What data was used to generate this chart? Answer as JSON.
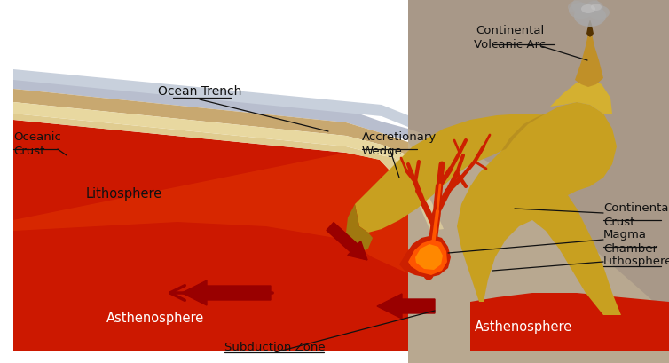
{
  "background_color": "#ffffff",
  "colors": {
    "ocean_water": "#b8bece",
    "ocean_water_light": "#c8d0dc",
    "oceanic_crust_brown": "#c8a870",
    "oceanic_crust_cream": "#e8d8a0",
    "lithosphere_cream": "#e0cc90",
    "asthenosphere_red": "#cc1800",
    "asthenosphere_orange": "#e84000",
    "continental_gray": "#a89888",
    "continental_tan": "#c8b898",
    "mountain_gold": "#c8a020",
    "mountain_gold2": "#b89018",
    "mountain_shadow": "#a07810",
    "magma_red": "#cc2000",
    "magma_orange": "#ff5500",
    "magma_bright": "#ff8800",
    "arrow_dark_red": "#990000",
    "smoke_gray": "#a8a8a8",
    "smoke_light": "#c8c8c8",
    "text_black": "#111111",
    "line_black": "#111111"
  },
  "labels": {
    "oceanic_crust": "Oceanic\nCrust",
    "ocean_trench": "Ocean Trench",
    "accretionary_wedge": "Accretionary\nWedge",
    "continental_volcanic_arc": "Continental\nVolcanic Arc",
    "lithosphere_left": "Lithosphere",
    "asthenosphere_left": "Asthenosphere",
    "subduction_zone": "Subduction Zone",
    "magma_chamber": "Magma\nChamber",
    "lithosphere_right": "Lithosphere",
    "continental_crust": "Continental\nCrust",
    "asthenosphere_right": "Asthenosphere"
  }
}
